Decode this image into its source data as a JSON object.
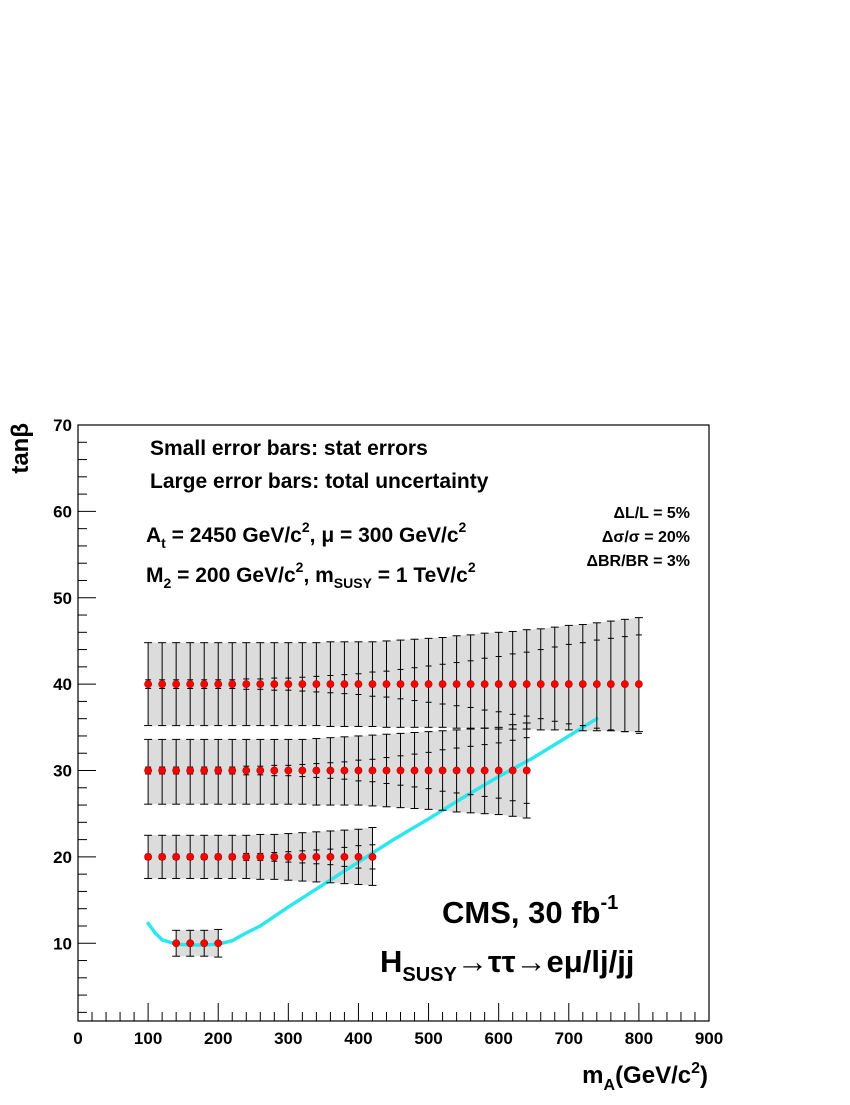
{
  "chart_data": {
    "type": "scatter",
    "title": "",
    "xlabel": "m_A(GeV/c^2)",
    "ylabel": "tanβ",
    "xlim": [
      0,
      900
    ],
    "ylim": [
      1,
      70
    ],
    "xticks": [
      0,
      100,
      200,
      300,
      400,
      500,
      600,
      700,
      800,
      900
    ],
    "yticks": [
      10,
      20,
      30,
      40,
      50,
      60,
      70
    ],
    "grid": false,
    "legend": "none",
    "colors": {
      "points": "#ff0000",
      "curve": "#2ee6ee",
      "band": "#dcdcdc",
      "errors": "#000000"
    },
    "annotations": {
      "line1": "Small error bars: stat errors",
      "line2": "Large error bars: total uncertainty",
      "params1": {
        "a": "A",
        "a_sub": "t",
        "a_eq": " = 2450 GeV/c",
        "sup1": "2",
        "mid": ", μ = 300 GeV/c",
        "sup2": "2"
      },
      "params2": {
        "a": "M",
        "a_sub": "2",
        "a_eq": " = 200 GeV/c",
        "sup1": "2",
        "mid": ", m",
        "sub2": "SUSY",
        "end": " = 1 TeV/c",
        "sup2": "2"
      },
      "sys1": "ΔL/L = 5%",
      "sys2": "Δσ/σ = 20%",
      "sys3": "ΔBR/BR = 3%",
      "cms": {
        "text": "CMS, 30 fb",
        "sup": "-1"
      },
      "channel": {
        "h": "H",
        "sub": "SUSY",
        "rest": "→ττ→eμ/lj/jj"
      }
    },
    "series": [
      {
        "tanb": 40,
        "x": [
          100,
          120,
          140,
          160,
          180,
          200,
          220,
          240,
          260,
          280,
          300,
          320,
          340,
          360,
          380,
          400,
          420,
          440,
          460,
          480,
          500,
          520,
          540,
          560,
          580,
          600,
          620,
          640,
          660,
          680,
          700,
          720,
          740,
          760,
          780,
          800
        ],
        "stat_lo": [
          39.5,
          39.5,
          39.5,
          39.5,
          39.5,
          39.5,
          39.5,
          39.4,
          39.4,
          39.3,
          39.3,
          39.2,
          39.1,
          39.0,
          38.9,
          38.8,
          38.6,
          38.5,
          38.3,
          38.1,
          37.9,
          37.7,
          37.5,
          37.3,
          37.0,
          36.8,
          36.5,
          36.3,
          36.0,
          35.7,
          35.4,
          35.2,
          34.9,
          34.7,
          34.5,
          34.3
        ],
        "stat_hi": [
          40.5,
          40.5,
          40.5,
          40.5,
          40.5,
          40.5,
          40.5,
          40.6,
          40.6,
          40.7,
          40.7,
          40.8,
          40.9,
          41.0,
          41.1,
          41.2,
          41.4,
          41.5,
          41.7,
          41.9,
          42.1,
          42.3,
          42.5,
          42.7,
          43.0,
          43.2,
          43.5,
          43.7,
          44.0,
          44.3,
          44.6,
          44.8,
          45.1,
          45.3,
          45.5,
          45.7
        ],
        "tot_lo": [
          35.2,
          35.2,
          35.2,
          35.2,
          35.2,
          35.2,
          35.2,
          35.2,
          35.2,
          35.2,
          35.2,
          35.2,
          35.2,
          35.1,
          35.1,
          35.1,
          35.1,
          35.0,
          35.0,
          35.0,
          35.0,
          35.0,
          34.9,
          34.9,
          34.9,
          34.8,
          34.8,
          34.8,
          34.7,
          34.7,
          34.7,
          34.6,
          34.6,
          34.6,
          34.5,
          34.5
        ],
        "tot_hi": [
          44.8,
          44.8,
          44.8,
          44.8,
          44.8,
          44.8,
          44.8,
          44.8,
          44.8,
          44.8,
          44.8,
          44.8,
          44.8,
          44.9,
          44.9,
          44.9,
          44.9,
          45.0,
          45.1,
          45.2,
          45.3,
          45.4,
          45.6,
          45.7,
          45.9,
          46.0,
          46.1,
          46.3,
          46.4,
          46.6,
          46.8,
          46.9,
          47.1,
          47.3,
          47.5,
          47.7
        ]
      },
      {
        "tanb": 30,
        "x": [
          100,
          120,
          140,
          160,
          180,
          200,
          220,
          240,
          260,
          280,
          300,
          320,
          340,
          360,
          380,
          400,
          420,
          440,
          460,
          480,
          500,
          520,
          540,
          560,
          580,
          600,
          620,
          640
        ],
        "stat_lo": [
          29.6,
          29.6,
          29.6,
          29.6,
          29.6,
          29.6,
          29.6,
          29.5,
          29.5,
          29.4,
          29.4,
          29.3,
          29.2,
          29.1,
          29.0,
          28.8,
          28.7,
          28.5,
          28.3,
          28.1,
          27.9,
          27.6,
          27.4,
          27.2,
          27.0,
          26.8,
          26.5,
          26.2
        ],
        "stat_hi": [
          30.4,
          30.4,
          30.4,
          30.4,
          30.4,
          30.4,
          30.4,
          30.5,
          30.5,
          30.6,
          30.6,
          30.7,
          30.8,
          30.9,
          31.0,
          31.2,
          31.3,
          31.5,
          31.7,
          31.9,
          32.1,
          32.4,
          32.6,
          32.8,
          33.0,
          33.2,
          33.5,
          33.8
        ],
        "tot_lo": [
          26.1,
          26.1,
          26.1,
          26.1,
          26.1,
          26.1,
          26.1,
          26.1,
          26.1,
          26.1,
          26.1,
          26.1,
          26.0,
          26.0,
          26.0,
          26.0,
          25.9,
          25.8,
          25.7,
          25.6,
          25.5,
          25.4,
          25.2,
          25.1,
          25.0,
          24.9,
          24.7,
          24.5
        ],
        "tot_hi": [
          33.6,
          33.6,
          33.6,
          33.6,
          33.6,
          33.6,
          33.6,
          33.6,
          33.6,
          33.6,
          33.6,
          33.6,
          33.7,
          33.8,
          33.9,
          34.0,
          34.1,
          34.2,
          34.3,
          34.4,
          34.5,
          34.6,
          34.7,
          34.8,
          34.9,
          35.0,
          35.3,
          35.5
        ]
      },
      {
        "tanb": 20,
        "x": [
          100,
          120,
          140,
          160,
          180,
          200,
          220,
          240,
          260,
          280,
          300,
          320,
          340,
          360,
          380,
          400,
          420
        ],
        "stat_lo": [
          19.7,
          19.7,
          19.7,
          19.7,
          19.7,
          19.7,
          19.7,
          19.6,
          19.6,
          19.5,
          19.4,
          19.3,
          19.2,
          19.1,
          18.9,
          18.7,
          18.6
        ],
        "stat_hi": [
          20.3,
          20.3,
          20.3,
          20.3,
          20.3,
          20.3,
          20.3,
          20.4,
          20.4,
          20.5,
          20.6,
          20.7,
          20.8,
          20.9,
          21.1,
          21.3,
          21.4
        ],
        "tot_lo": [
          17.5,
          17.5,
          17.5,
          17.5,
          17.5,
          17.5,
          17.5,
          17.5,
          17.4,
          17.4,
          17.3,
          17.2,
          17.1,
          17.0,
          16.9,
          16.8,
          16.7
        ],
        "tot_hi": [
          22.5,
          22.5,
          22.5,
          22.5,
          22.5,
          22.5,
          22.5,
          22.5,
          22.6,
          22.6,
          22.7,
          22.8,
          22.9,
          23.0,
          23.1,
          23.2,
          23.4
        ]
      },
      {
        "tanb": 10,
        "x": [
          140,
          160,
          180,
          200
        ],
        "stat_lo": [
          9.85,
          9.85,
          9.85,
          9.85
        ],
        "stat_hi": [
          10.15,
          10.15,
          10.15,
          10.15
        ],
        "tot_lo": [
          8.5,
          8.5,
          8.5,
          8.4
        ],
        "tot_hi": [
          11.5,
          11.5,
          11.5,
          11.6
        ]
      }
    ],
    "curve": {
      "name": "",
      "x": [
        100,
        110,
        120,
        140,
        160,
        180,
        200,
        220,
        240,
        260,
        300,
        350,
        400,
        450,
        500,
        550,
        600,
        650,
        700,
        740
      ],
      "y": [
        12.3,
        11.2,
        10.4,
        9.9,
        9.8,
        9.8,
        9.9,
        10.3,
        11.2,
        12.0,
        14.2,
        16.8,
        19.4,
        22.0,
        24.4,
        26.9,
        29.3,
        31.5,
        34.0,
        36.0
      ]
    }
  }
}
